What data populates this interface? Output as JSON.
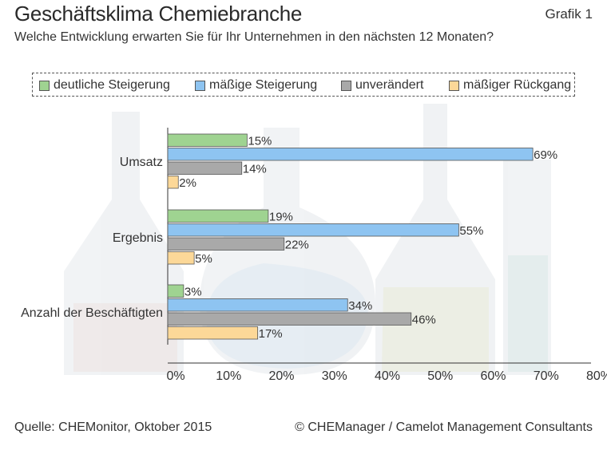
{
  "header": {
    "title": "Geschäftsklima Chemiebranche",
    "badge": "Grafik 1",
    "subtitle": "Welche Entwicklung erwarten Sie für Ihr Unternehmen in den nächsten 12 Monaten?"
  },
  "footer": {
    "source": "Quelle: CHEMonitor, Oktober 2015",
    "copyright": "© CHEManager / Camelot Management Consultants"
  },
  "chart_data": {
    "type": "bar",
    "orientation": "horizontal",
    "categories": [
      "Umsatz",
      "Ergebnis",
      "Anzahl der Beschäftigten"
    ],
    "series": [
      {
        "name": "deutliche Steigerung",
        "color": "#9fd391",
        "values": [
          15,
          19,
          3
        ]
      },
      {
        "name": "mäßige Steigerung",
        "color": "#8ec4f1",
        "values": [
          69,
          55,
          34
        ]
      },
      {
        "name": "unverändert",
        "color": "#a9a9a9",
        "values": [
          14,
          22,
          46
        ]
      },
      {
        "name": "mäßiger Rückgang",
        "color": "#fcd898",
        "values": [
          2,
          5,
          17
        ]
      }
    ],
    "xlim": [
      0,
      80
    ],
    "xticks": [
      "0%",
      "10%",
      "20%",
      "30%",
      "40%",
      "50%",
      "60%",
      "70%",
      "80%"
    ],
    "value_suffix": "%",
    "legend_position": "top",
    "grid": false
  }
}
